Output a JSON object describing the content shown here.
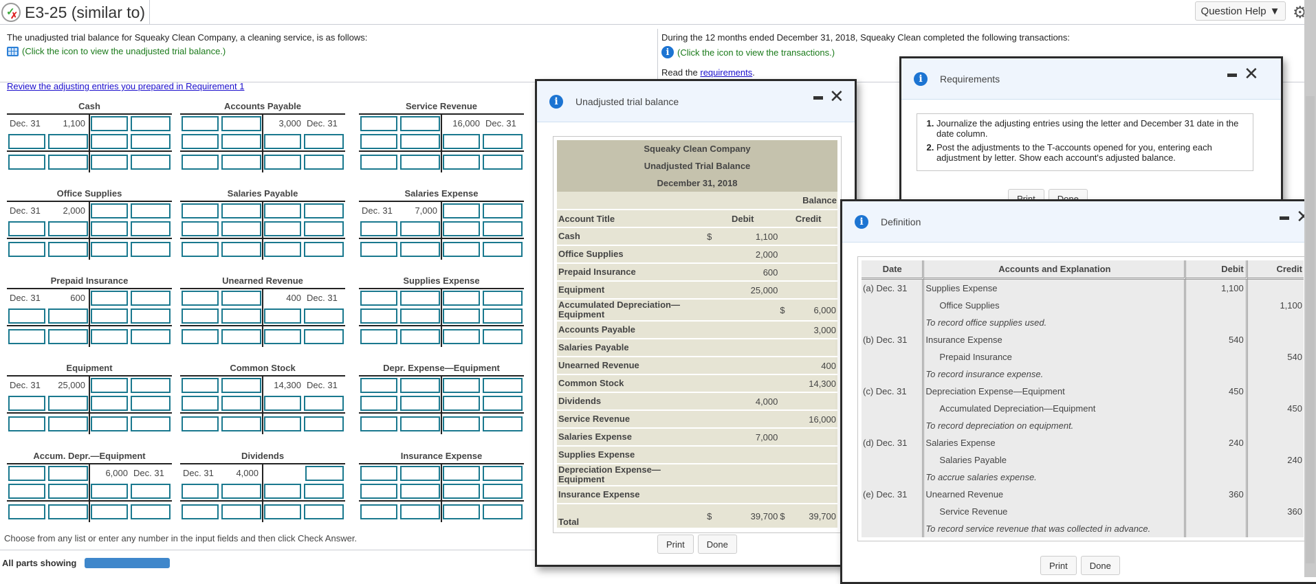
{
  "header": {
    "title": "E3-25 (similar to)",
    "question_help": "Question Help",
    "status_icon": "partially-correct-icon",
    "settings_icon": "gear-icon"
  },
  "intro": {
    "left_text": "The unadjusted trial balance for Squeaky Clean Company, a cleaning service, is as follows:",
    "left_link": "(Click the icon to view the unadjusted trial balance.)",
    "right_text": "During the 12 months ended December 31, 2018, Squeaky Clean completed the following transactions:",
    "right_link": "(Click the icon to view the transactions.)",
    "read_prefix": "Read the ",
    "read_link": "requirements",
    "read_suffix": "."
  },
  "review_link": "Review the adjusting entries you prepared in Requirement 1",
  "t_accounts": [
    {
      "name": "Cash",
      "side": "debit",
      "date": "Dec. 31",
      "amount": "1,100"
    },
    {
      "name": "Accounts Payable",
      "side": "credit",
      "date": "Dec. 31",
      "amount": "3,000"
    },
    {
      "name": "Service Revenue",
      "side": "credit",
      "date": "Dec. 31",
      "amount": "16,000"
    },
    {
      "name": "Office Supplies",
      "side": "debit",
      "date": "Dec. 31",
      "amount": "2,000"
    },
    {
      "name": "Salaries Payable",
      "side": "none",
      "date": "",
      "amount": ""
    },
    {
      "name": "Salaries Expense",
      "side": "debit",
      "date": "Dec. 31",
      "amount": "7,000"
    },
    {
      "name": "Prepaid Insurance",
      "side": "debit",
      "date": "Dec. 31",
      "amount": "600"
    },
    {
      "name": "Unearned Revenue",
      "side": "credit",
      "date": "Dec. 31",
      "amount": "400"
    },
    {
      "name": "Supplies Expense",
      "side": "none",
      "date": "",
      "amount": ""
    },
    {
      "name": "Equipment",
      "side": "debit",
      "date": "Dec. 31",
      "amount": "25,000"
    },
    {
      "name": "Common Stock",
      "side": "credit",
      "date": "Dec. 31",
      "amount": "14,300"
    },
    {
      "name": "Depr. Expense—Equipment",
      "side": "none",
      "date": "",
      "amount": ""
    },
    {
      "name": "Accum. Depr.—Equipment",
      "side": "credit",
      "date": "Dec. 31",
      "amount": "6,000"
    },
    {
      "name": "Dividends",
      "side": "debit",
      "date": "Dec. 31",
      "amount": "4,000"
    },
    {
      "name": "Insurance Expense",
      "side": "none",
      "date": "",
      "amount": ""
    }
  ],
  "footer": {
    "instruction": "Choose from any list or enter any number in the input fields and then click Check Answer.",
    "parts_label": "All parts showing"
  },
  "trial_balance_dialog": {
    "title": "Unadjusted trial balance",
    "company": "Squeaky Clean Company",
    "report": "Unadjusted Trial Balance",
    "date": "December 31, 2018",
    "balance_header": "Balance",
    "col_account": "Account Title",
    "col_debit": "Debit",
    "col_credit": "Credit",
    "rows": [
      {
        "account": "Cash",
        "debit_sym": "$",
        "debit": "1,100",
        "credit_sym": "",
        "credit": ""
      },
      {
        "account": "Office Supplies",
        "debit_sym": "",
        "debit": "2,000",
        "credit_sym": "",
        "credit": ""
      },
      {
        "account": "Prepaid Insurance",
        "debit_sym": "",
        "debit": "600",
        "credit_sym": "",
        "credit": ""
      },
      {
        "account": "Equipment",
        "debit_sym": "",
        "debit": "25,000",
        "credit_sym": "",
        "credit": ""
      },
      {
        "account": "Accumulated Depreciation—Equipment",
        "debit_sym": "",
        "debit": "",
        "credit_sym": "$",
        "credit": "6,000"
      },
      {
        "account": "Accounts Payable",
        "debit_sym": "",
        "debit": "",
        "credit_sym": "",
        "credit": "3,000"
      },
      {
        "account": "Salaries Payable",
        "debit_sym": "",
        "debit": "",
        "credit_sym": "",
        "credit": ""
      },
      {
        "account": "Unearned Revenue",
        "debit_sym": "",
        "debit": "",
        "credit_sym": "",
        "credit": "400"
      },
      {
        "account": "Common Stock",
        "debit_sym": "",
        "debit": "",
        "credit_sym": "",
        "credit": "14,300"
      },
      {
        "account": "Dividends",
        "debit_sym": "",
        "debit": "4,000",
        "credit_sym": "",
        "credit": ""
      },
      {
        "account": "Service Revenue",
        "debit_sym": "",
        "debit": "",
        "credit_sym": "",
        "credit": "16,000"
      },
      {
        "account": "Salaries Expense",
        "debit_sym": "",
        "debit": "7,000",
        "credit_sym": "",
        "credit": ""
      },
      {
        "account": "Supplies Expense",
        "debit_sym": "",
        "debit": "",
        "credit_sym": "",
        "credit": ""
      },
      {
        "account": "Depreciation Expense—Equipment",
        "debit_sym": "",
        "debit": "",
        "credit_sym": "",
        "credit": ""
      },
      {
        "account": "Insurance Expense",
        "debit_sym": "",
        "debit": "",
        "credit_sym": "",
        "credit": ""
      }
    ],
    "total_label": "Total",
    "total_debit_sym": "$",
    "total_debit": "39,700",
    "total_credit_sym": "$",
    "total_credit": "39,700",
    "print": "Print",
    "done": "Done"
  },
  "requirements_dialog": {
    "title": "Requirements",
    "items": [
      "Journalize the adjusting entries using the letter and December 31 date in the date column.",
      "Post the adjustments to the T-accounts opened for you, entering each adjustment by letter. Show each account's adjusted balance."
    ],
    "print": "Print",
    "done": "Done"
  },
  "definition_dialog": {
    "title": "Definition",
    "columns": [
      "Date",
      "Accounts and Explanation",
      "Debit",
      "Credit"
    ],
    "entries": [
      {
        "date": "(a) Dec. 31",
        "debit_account": "Supplies Expense",
        "credit_account": "Office Supplies",
        "amount": "1,100",
        "explanation": "To record office supplies used."
      },
      {
        "date": "(b) Dec. 31",
        "debit_account": "Insurance Expense",
        "credit_account": "Prepaid Insurance",
        "amount": "540",
        "explanation": "To record insurance expense."
      },
      {
        "date": "(c) Dec. 31",
        "debit_account": "Depreciation Expense—Equipment",
        "credit_account": "Accumulated Depreciation—Equipment",
        "amount": "450",
        "explanation": "To record depreciation on equipment."
      },
      {
        "date": "(d) Dec. 31",
        "debit_account": "Salaries Expense",
        "credit_account": "Salaries Payable",
        "amount": "240",
        "explanation": "To accrue salaries expense."
      },
      {
        "date": "(e) Dec. 31",
        "debit_account": "Unearned Revenue",
        "credit_account": "Service Revenue",
        "amount": "360",
        "explanation": "To record service revenue that was collected in advance."
      }
    ],
    "print": "Print",
    "done": "Done"
  },
  "colors": {
    "input_border": "#19788e",
    "link": "#1a0dcc",
    "hint_green": "#1a7a1a",
    "info_blue": "#1c74d2",
    "tb_header": "#c5c2ad",
    "tb_row": "#e6e4d4",
    "def_bg": "#ebebeb",
    "progress": "#3f87cb"
  }
}
